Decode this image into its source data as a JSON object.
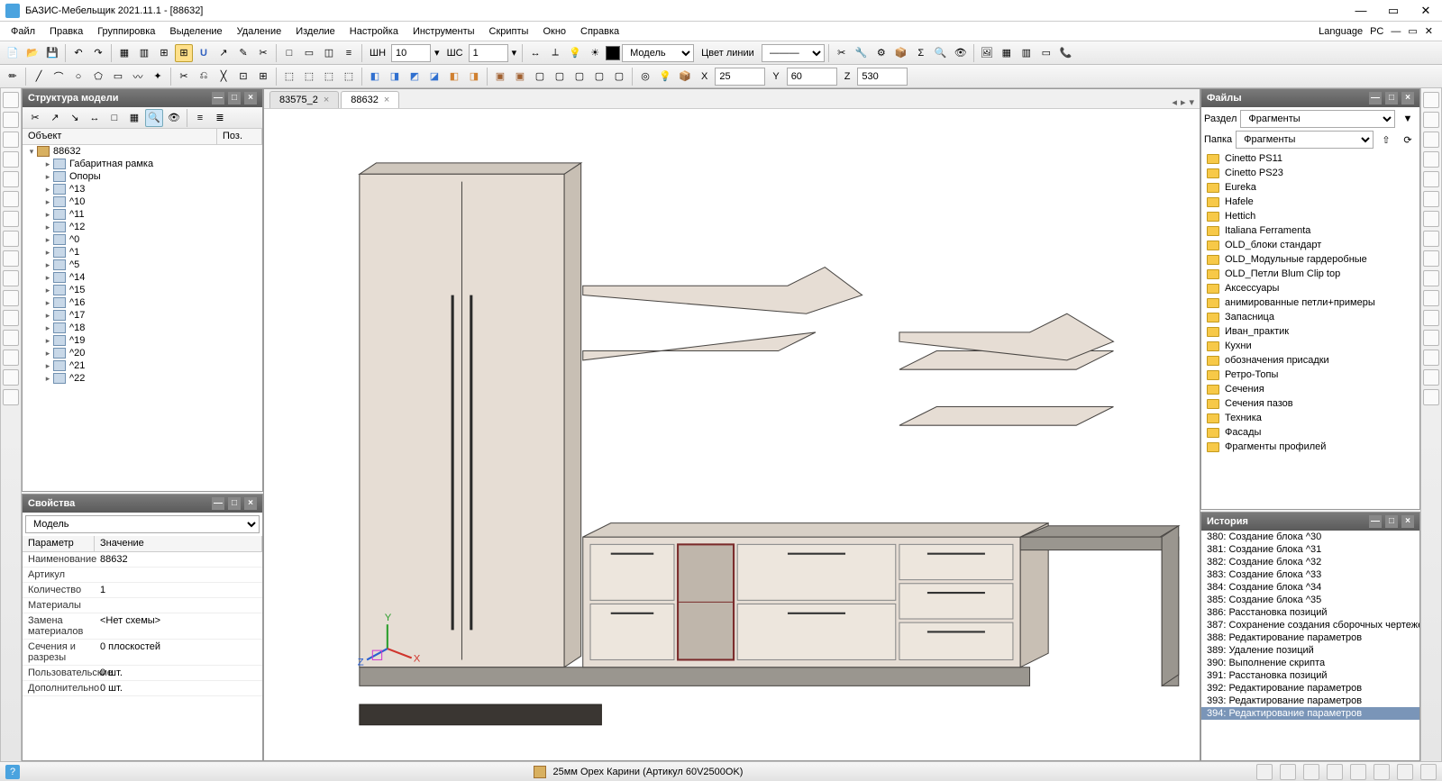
{
  "app": {
    "title": "БАЗИС-Мебельщик 2021.11.1 - [88632]",
    "language_label": "Language",
    "pc_label": "PC"
  },
  "menu": [
    "Файл",
    "Правка",
    "Группировка",
    "Выделение",
    "Удаление",
    "Изделие",
    "Настройка",
    "Инструменты",
    "Скрипты",
    "Окно",
    "Справка"
  ],
  "toolbar1": {
    "shn_label": "ШН",
    "shn_value": "10",
    "shs_label": "ШС",
    "shs_value": "1",
    "model_label": "Модель",
    "line_color_label": "Цвет линии"
  },
  "toolbar2": {
    "x_label": "X",
    "x_value": "25",
    "y_label": "Y",
    "y_value": "60",
    "z_label": "Z",
    "z_value": "530"
  },
  "structure_panel": {
    "title": "Структура модели",
    "col_object": "Объект",
    "col_pos": "Поз.",
    "root": "88632",
    "items": [
      "Габаритная рамка",
      "Опоры",
      "^13",
      "^10",
      "^11",
      "^12",
      "^0",
      "^1",
      "^5",
      "^14",
      "^15",
      "^16",
      "^17",
      "^18",
      "^19",
      "^20",
      "^21",
      "^22"
    ]
  },
  "properties_panel": {
    "title": "Свойства",
    "selector": "Модель",
    "col_param": "Параметр",
    "col_value": "Значение",
    "rows": [
      {
        "k": "Наименование",
        "v": "88632"
      },
      {
        "k": "Артикул",
        "v": ""
      },
      {
        "k": "Количество",
        "v": "1"
      },
      {
        "k": "Материалы",
        "v": ""
      },
      {
        "k": "Замена материалов",
        "v": "<Нет схемы>"
      },
      {
        "k": "Сечения и разрезы",
        "v": "0 плоскостей"
      },
      {
        "k": "Пользовательские",
        "v": "0 шт."
      },
      {
        "k": "Дополнительно",
        "v": "0 шт."
      }
    ]
  },
  "tabs": [
    {
      "label": "83575_2",
      "active": false
    },
    {
      "label": "88632",
      "active": true
    }
  ],
  "files_panel": {
    "title": "Файлы",
    "section_label": "Раздел",
    "section_value": "Фрагменты",
    "folder_label": "Папка",
    "folder_value": "Фрагменты",
    "folders": [
      "Cinetto PS11",
      "Cinetto PS23",
      "Eureka",
      "Hafele",
      "Hettich",
      "Italiana Ferramenta",
      "OLD_блоки стандарт",
      "OLD_Модульные гардеробные",
      "OLD_Петли Blum Clip top",
      "Аксессуары",
      "анимированные петли+примеры",
      "Запасница",
      "Иван_практик",
      "Кухни",
      "обозначения присадки",
      "Ретро-Топы",
      "Сечения",
      "Сечения пазов",
      "Техника",
      "Фасады",
      "Фрагменты профилей"
    ]
  },
  "history_panel": {
    "title": "История",
    "items": [
      {
        "n": "380",
        "t": "Создание блока ^30"
      },
      {
        "n": "381",
        "t": "Создание блока ^31"
      },
      {
        "n": "382",
        "t": "Создание блока ^32"
      },
      {
        "n": "383",
        "t": "Создание блока ^33"
      },
      {
        "n": "384",
        "t": "Создание блока ^34"
      },
      {
        "n": "385",
        "t": "Создание блока ^35"
      },
      {
        "n": "386",
        "t": "Расстановка позиций"
      },
      {
        "n": "387",
        "t": "Сохранение создания сборочных чертежей"
      },
      {
        "n": "388",
        "t": "Редактирование параметров"
      },
      {
        "n": "389",
        "t": "Удаление позиций"
      },
      {
        "n": "390",
        "t": "Выполнение скрипта"
      },
      {
        "n": "391",
        "t": "Расстановка позиций"
      },
      {
        "n": "392",
        "t": "Редактирование параметров"
      },
      {
        "n": "393",
        "t": "Редактирование параметров"
      },
      {
        "n": "394",
        "t": "Редактирование параметров"
      }
    ],
    "selected": "394"
  },
  "statusbar": {
    "material": "25мм Орех Карини (Артикул 60V2500OK)",
    "help_icon": "?"
  },
  "colors": {
    "panel_header_bg": "#6a6a6a",
    "accent": "#4aa3df",
    "folder": "#f7c948",
    "viewport_bg": "#ffffff",
    "furniture_light": "#e6ddd4",
    "furniture_dark": "#9a968f",
    "furniture_edge": "#4a4744",
    "open_box_frame": "#7a2a2a"
  },
  "viewport": {
    "note": "3D isometric furniture assembly rendered as simplified SVG approximation",
    "axis_labels": {
      "x": "X",
      "y": "Y",
      "z": "Z"
    }
  }
}
